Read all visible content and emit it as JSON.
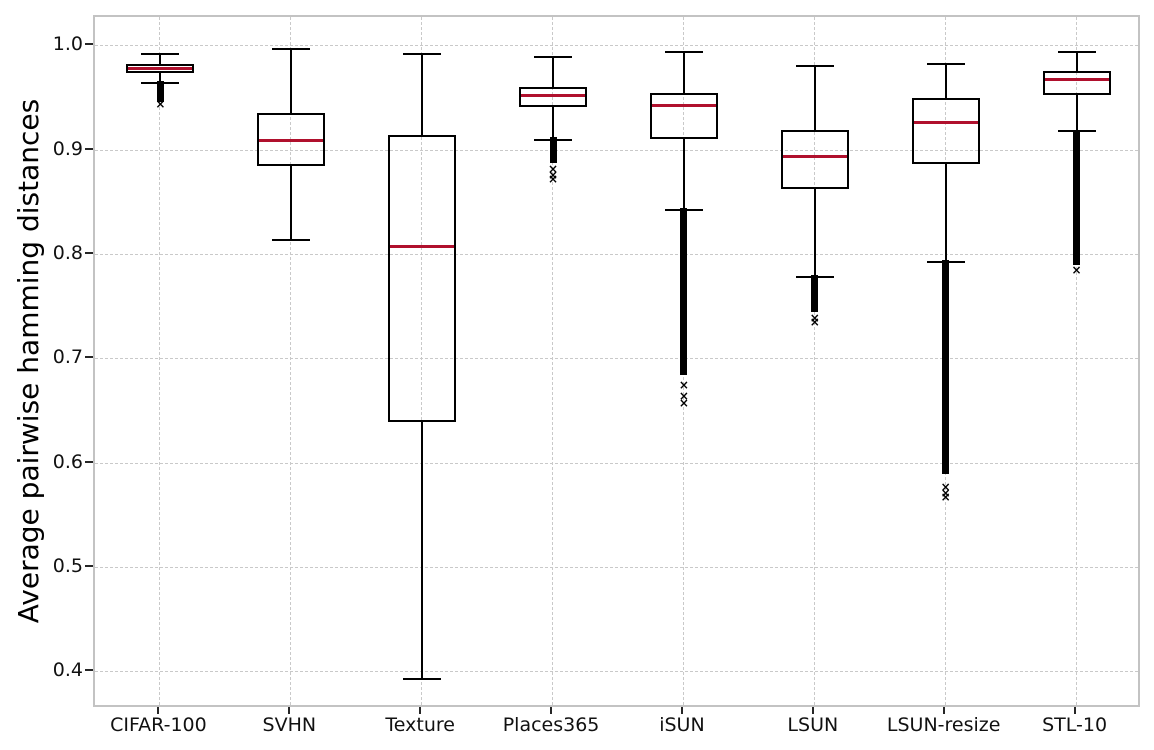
{
  "chart_data": {
    "type": "boxplot",
    "title": "",
    "xlabel": "",
    "ylabel": "Average pairwise hamming distances",
    "ylim": [
      0.365,
      1.028
    ],
    "yticks": [
      1.0,
      0.9,
      0.8,
      0.7,
      0.6,
      0.5,
      0.4
    ],
    "ytick_labels": [
      "1.0",
      "0.9",
      "0.8",
      "0.7",
      "0.6",
      "0.5",
      "0.4"
    ],
    "grid": true,
    "legend": "none",
    "colors": {
      "median": "#b0102d",
      "box_line": "#000000",
      "grid": "#c9c9c9",
      "spine": "#c3c3c3",
      "tick": "#262626",
      "outlier": "#000000"
    },
    "categories": [
      "CIFAR-100",
      "SVHN",
      "Texture",
      "Places365",
      "iSUN",
      "LSUN",
      "LSUN-resize",
      "STL-10"
    ],
    "series": [
      {
        "label": "CIFAR-100",
        "whislo": 0.965,
        "q1": 0.974,
        "med": 0.979,
        "q3": 0.983,
        "whishi": 0.993,
        "fliers_dense": [
          0.967,
          0.947
        ],
        "fliers_sparse": [
          0.945
        ]
      },
      {
        "label": "SVHN",
        "whislo": 0.814,
        "q1": 0.885,
        "med": 0.91,
        "q3": 0.936,
        "whishi": 0.997,
        "fliers_dense": null,
        "fliers_sparse": []
      },
      {
        "label": "Texture",
        "whislo": 0.394,
        "q1": 0.64,
        "med": 0.808,
        "q3": 0.915,
        "whishi": 0.993,
        "fliers_dense": null,
        "fliers_sparse": []
      },
      {
        "label": "Places365",
        "whislo": 0.91,
        "q1": 0.942,
        "med": 0.953,
        "q3": 0.961,
        "whishi": 0.99,
        "fliers_dense": [
          0.913,
          0.888
        ],
        "fliers_sparse": [
          0.882,
          0.877,
          0.873
        ]
      },
      {
        "label": "iSUN",
        "whislo": 0.843,
        "q1": 0.911,
        "med": 0.943,
        "q3": 0.955,
        "whishi": 0.994,
        "fliers_dense": [
          0.845,
          0.685
        ],
        "fliers_sparse": [
          0.675,
          0.665,
          0.658
        ]
      },
      {
        "label": "LSUN",
        "whislo": 0.779,
        "q1": 0.863,
        "med": 0.894,
        "q3": 0.92,
        "whishi": 0.981,
        "fliers_dense": [
          0.781,
          0.745
        ],
        "fliers_sparse": [
          0.74,
          0.736
        ]
      },
      {
        "label": "LSUN-resize",
        "whislo": 0.793,
        "q1": 0.887,
        "med": 0.927,
        "q3": 0.95,
        "whishi": 0.983,
        "fliers_dense": [
          0.795,
          0.59
        ],
        "fliers_sparse": [
          0.578,
          0.572,
          0.568
        ]
      },
      {
        "label": "STL-10",
        "whislo": 0.919,
        "q1": 0.953,
        "med": 0.968,
        "q3": 0.976,
        "whishi": 0.994,
        "fliers_dense": [
          0.92,
          0.79
        ],
        "fliers_sparse": [
          0.786
        ]
      }
    ]
  }
}
